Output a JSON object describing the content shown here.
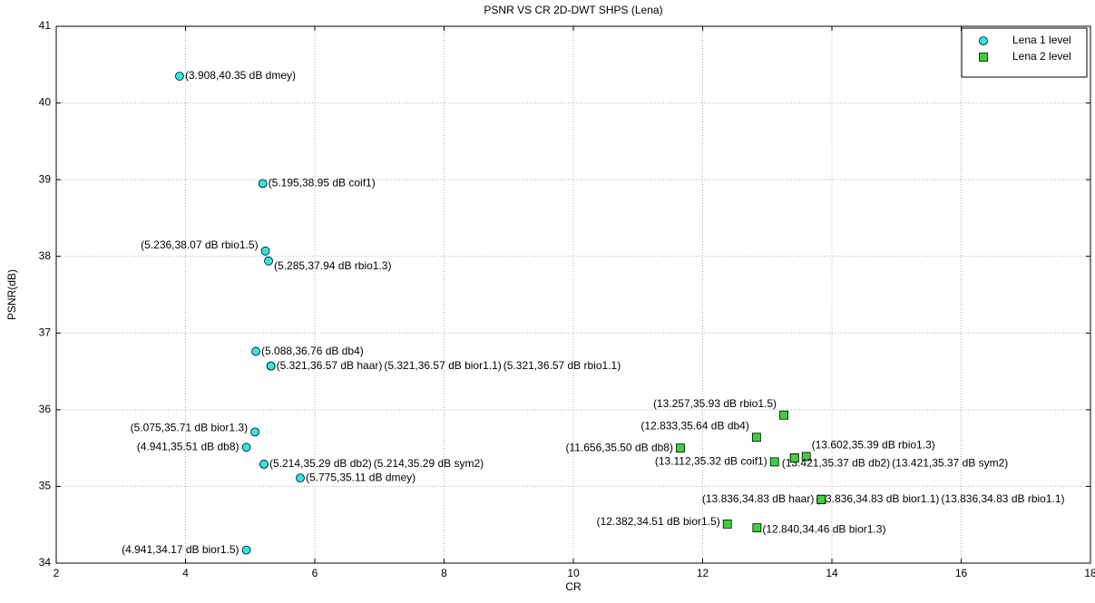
{
  "chart_data": {
    "type": "scatter",
    "title": "PSNR VS CR 2D-DWT SHPS (Lena)",
    "x_label": "CR",
    "y_label": "PSNR(dB)",
    "xlim": [
      2,
      18
    ],
    "xticks": [
      2,
      4,
      6,
      8,
      10,
      12,
      14,
      16,
      18
    ],
    "ylim": [
      34,
      41
    ],
    "yticks": [
      34,
      35,
      36,
      37,
      38,
      39,
      40,
      41
    ],
    "grid": true,
    "legend": "top-right",
    "series": [
      {
        "name": "Lena 1 level",
        "color": "#2ee6e6",
        "marker": "circle",
        "x": [
          3.908,
          5.195,
          5.236,
          5.285,
          5.088,
          5.321,
          5.321,
          5.321,
          5.075,
          4.941,
          5.214,
          5.214,
          5.775,
          4.941
        ],
        "values": [
          40.35,
          38.95,
          38.07,
          37.94,
          36.76,
          36.57,
          36.57,
          36.57,
          35.71,
          35.51,
          35.29,
          35.29,
          35.11,
          34.17
        ],
        "value_labels": [
          "(3.908,40.35 dB dmey)",
          "(5.195,38.95 dB coif1)",
          "(5.236,38.07 dB rbio1.5)",
          "(5.285,37.94 dB rbio1.3)",
          "(5.088,36.76 dB db4)",
          "(5.321,36.57 dB haar)",
          "(5.321,36.57 dB bior1.1)",
          "(5.321,36.57 dB rbio1.1)",
          "(5.075,35.71 dB bior1.3)",
          "(4.941,35.51 dB db8)",
          "(5.214,35.29 dB db2)",
          "(5.214,35.29 dB sym2)",
          "(5.775,35.11 dB dmey)",
          "(4.941,34.17 dB bior1.5)"
        ]
      },
      {
        "name": "Lena 2 level",
        "color": "#3ed13e",
        "marker": "square",
        "x": [
          13.257,
          12.833,
          11.656,
          13.112,
          13.602,
          13.421,
          13.421,
          13.836,
          13.836,
          13.836,
          12.382,
          12.84
        ],
        "values": [
          35.93,
          35.64,
          35.5,
          35.32,
          35.39,
          35.37,
          35.37,
          34.83,
          34.83,
          34.83,
          34.51,
          34.46
        ],
        "value_labels": [
          "(13.257,35.93 dB rbio1.5)",
          "(12.833,35.64 dB db4)",
          "(11.656,35.50 dB db8)",
          "(13.112,35.32 dB coif1)",
          "(13.602,35.39 dB rbio1.3)",
          "(13.421,35.37 dB db2)",
          "(13.421,35.37 dB sym2)",
          "(13.836,34.83 dB haar)",
          "(13.836,34.83 dB bior1.1)",
          "(13.836,34.83 dB rbio1.1)",
          "(12.382,34.51 dB bior1.5)",
          "(12.840,34.46 dB bior1.3)"
        ]
      }
    ]
  }
}
